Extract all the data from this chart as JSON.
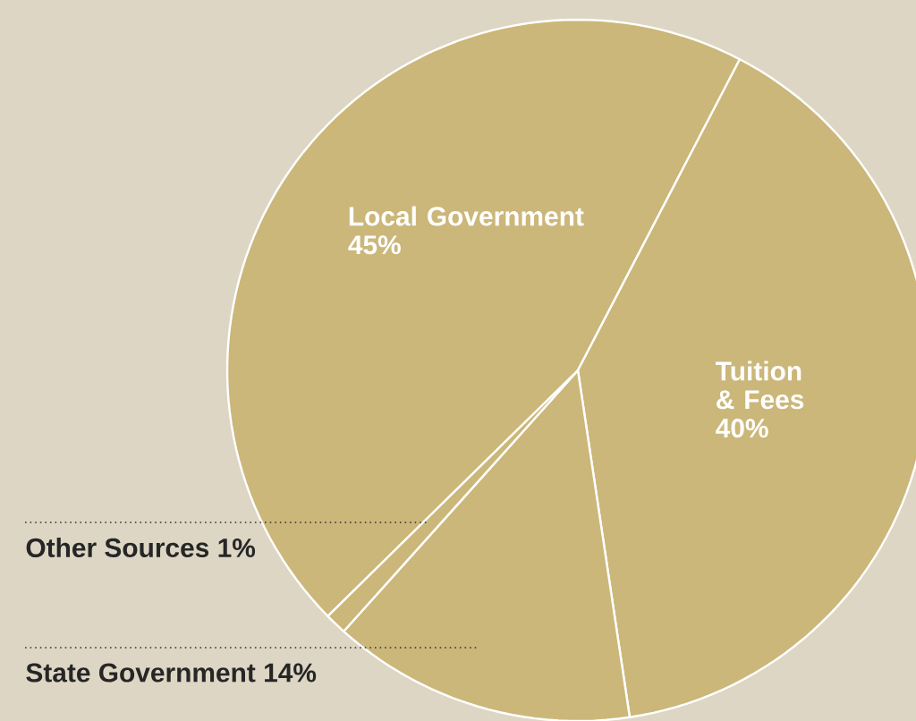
{
  "chart_data": {
    "type": "pie",
    "categories": [
      "Local Government",
      "Tuition & Fees",
      "State Government",
      "Other Sources"
    ],
    "values": [
      45,
      40,
      14,
      1
    ],
    "value_labels": [
      "45%",
      "40%",
      "14%",
      "1%"
    ],
    "colors": [
      "#cbb77a",
      "#cbb77a",
      "#cbb77a",
      "#cbb77a"
    ]
  }
}
